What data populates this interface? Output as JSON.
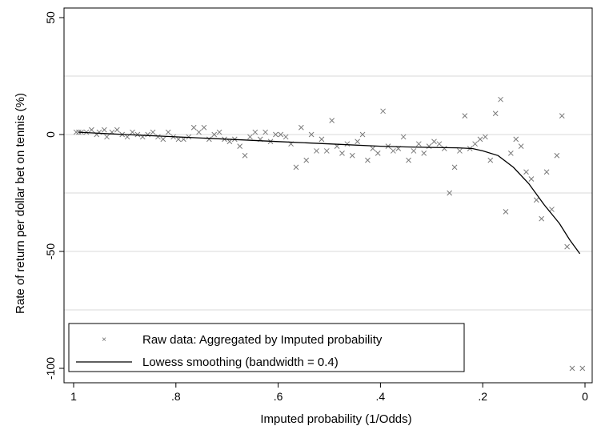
{
  "chart_data": {
    "type": "scatter",
    "xlabel": "Imputed probability (1/Odds)",
    "ylabel": "Rate of return per dollar bet on tennis (%)",
    "xlim": [
      1,
      0
    ],
    "ylim": [
      -100,
      50
    ],
    "x_reversed": true,
    "x_ticks": [
      1,
      0.8,
      0.6,
      0.4,
      0.2,
      0
    ],
    "x_tick_labels": [
      "1",
      ".8",
      ".6",
      ".4",
      ".2",
      "0"
    ],
    "y_ticks": [
      50,
      0,
      -50,
      -100
    ],
    "y_tick_labels": [
      "50",
      "0",
      "-50",
      "-100"
    ],
    "gridlines_y": [
      25,
      0,
      -25,
      -50,
      -75
    ],
    "grid": true,
    "legend_position": "bottom-inside",
    "series": [
      {
        "name": "Raw data: Aggregated by Imputed probability",
        "marker": "x",
        "x": [
          0.995,
          0.99,
          0.985,
          0.975,
          0.965,
          0.955,
          0.95,
          0.94,
          0.935,
          0.925,
          0.915,
          0.905,
          0.895,
          0.885,
          0.875,
          0.865,
          0.855,
          0.845,
          0.835,
          0.825,
          0.815,
          0.805,
          0.795,
          0.785,
          0.775,
          0.765,
          0.755,
          0.745,
          0.735,
          0.725,
          0.715,
          0.705,
          0.695,
          0.685,
          0.675,
          0.665,
          0.655,
          0.645,
          0.635,
          0.625,
          0.615,
          0.605,
          0.595,
          0.585,
          0.575,
          0.565,
          0.555,
          0.545,
          0.535,
          0.525,
          0.515,
          0.505,
          0.495,
          0.485,
          0.475,
          0.465,
          0.455,
          0.445,
          0.435,
          0.425,
          0.415,
          0.405,
          0.395,
          0.385,
          0.375,
          0.365,
          0.355,
          0.345,
          0.335,
          0.325,
          0.315,
          0.305,
          0.295,
          0.285,
          0.275,
          0.265,
          0.255,
          0.245,
          0.235,
          0.225,
          0.215,
          0.205,
          0.195,
          0.185,
          0.175,
          0.165,
          0.155,
          0.145,
          0.135,
          0.125,
          0.115,
          0.105,
          0.095,
          0.085,
          0.075,
          0.065,
          0.055,
          0.045,
          0.035,
          0.025,
          0.005
        ],
        "y": [
          1,
          1,
          1,
          1,
          2,
          0,
          1,
          2,
          -1,
          1,
          2,
          0,
          -1,
          1,
          0,
          -1,
          0,
          1,
          -1,
          -2,
          1,
          -1,
          -2,
          -2,
          -1,
          3,
          1,
          3,
          -2,
          0,
          1,
          -2,
          -3,
          -2,
          -5,
          -9,
          -1,
          1,
          -2,
          1,
          -3,
          0,
          0,
          -1,
          -4,
          -14,
          3,
          -11,
          0,
          -7,
          -2,
          -7,
          6,
          -5,
          -8,
          -4,
          -9,
          -3,
          0,
          -11,
          -6,
          -8,
          10,
          -5,
          -7,
          -6,
          -1,
          -11,
          -7,
          -4,
          -8,
          -5,
          -3,
          -4,
          -6,
          -25,
          -14,
          -7,
          8,
          -6,
          -4,
          -2,
          -1,
          -11,
          9,
          15,
          -33,
          -8,
          -2,
          -5,
          -16,
          -19,
          -28,
          -36,
          -16,
          -32,
          -9,
          8,
          -48,
          -100,
          -100
        ],
        "values_note": ""
      },
      {
        "name": "Lowess smoothing (bandwidth = 0.4)",
        "marker": "line",
        "x": [
          0.99,
          0.9,
          0.8,
          0.7,
          0.6,
          0.5,
          0.4,
          0.35,
          0.3,
          0.25,
          0.22,
          0.2,
          0.17,
          0.14,
          0.11,
          0.08,
          0.05,
          0.03,
          0.01
        ],
        "y": [
          1,
          0,
          -1,
          -2,
          -3,
          -4,
          -5,
          -5.3,
          -5.5,
          -5.7,
          -6,
          -7,
          -9,
          -14,
          -21,
          -30,
          -38,
          -45,
          -51
        ]
      }
    ]
  }
}
